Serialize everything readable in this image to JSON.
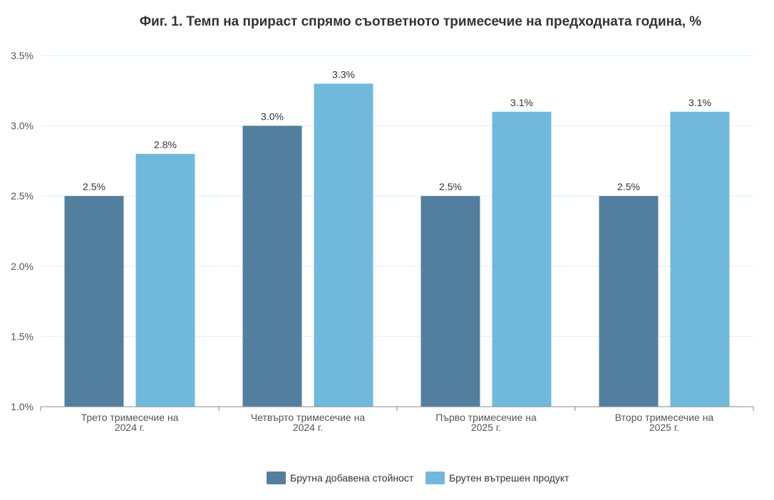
{
  "chart_data": {
    "type": "bar",
    "title": "Фиг. 1. Темп на прираст спрямо съответното тримесечие на предходната година, %",
    "categories": [
      [
        "Трето тримесечие на",
        "2024 г."
      ],
      [
        "Четвърто тримесечие на",
        "2024 г."
      ],
      [
        "Първо тримесечие на",
        "2025 г."
      ],
      [
        "Второ тримесечие на",
        "2025 г."
      ]
    ],
    "series": [
      {
        "name": "Брутна добавена стойност",
        "values": [
          2.5,
          3.0,
          2.5,
          2.5
        ],
        "labels": [
          "2.5%",
          "3.0%",
          "2.5%",
          "2.5%"
        ],
        "color": "#537f9e"
      },
      {
        "name": "Брутен вътрешен продукт",
        "values": [
          2.8,
          3.3,
          3.1,
          3.1
        ],
        "labels": [
          "2.8%",
          "3.3%",
          "3.1%",
          "3.1%"
        ],
        "color": "#70b9dd"
      }
    ],
    "ylim": [
      1.0,
      3.5
    ],
    "yticks": [
      1.0,
      1.5,
      2.0,
      2.5,
      3.0,
      3.5
    ],
    "ytick_labels": [
      "1.0%",
      "1.5%",
      "2.0%",
      "2.5%",
      "3.0%",
      "3.5%"
    ],
    "xlabel": "",
    "ylabel": "",
    "grid": true,
    "legend": "bottom-center"
  }
}
